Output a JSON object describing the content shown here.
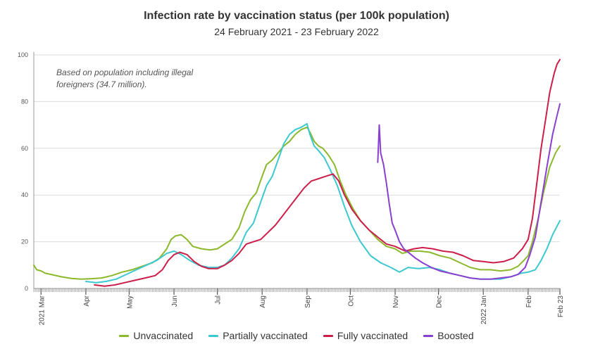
{
  "chart_data": {
    "type": "line",
    "title": "Infection rate by vaccination status (per 100k population)",
    "subtitle": "24 February 2021 - 23 February 2022",
    "annotation": [
      "Based on population including illegal",
      "foreigners (34.7 million)."
    ],
    "xlabel": "",
    "ylabel": "",
    "xlim": [
      "2021-02-24",
      "2022-02-23"
    ],
    "ylim": [
      0,
      100
    ],
    "y_ticks": [
      0,
      20,
      40,
      60,
      80,
      100
    ],
    "grid": "horizontal",
    "legend_position": "bottom",
    "x_ticks": [
      {
        "date": "2021-03-01",
        "label": "2021 Mar"
      },
      {
        "date": "2021-04-01",
        "label": "Apr"
      },
      {
        "date": "2021-05-01",
        "label": "May"
      },
      {
        "date": "2021-06-01",
        "label": "Jun"
      },
      {
        "date": "2021-07-01",
        "label": "Jul"
      },
      {
        "date": "2021-08-01",
        "label": "Aug"
      },
      {
        "date": "2021-09-01",
        "label": "Sep"
      },
      {
        "date": "2021-10-01",
        "label": "Oct"
      },
      {
        "date": "2021-11-01",
        "label": "Nov"
      },
      {
        "date": "2021-12-01",
        "label": "Dec"
      },
      {
        "date": "2022-01-01",
        "label": "2022 Jan"
      },
      {
        "date": "2022-02-01",
        "label": "Feb"
      },
      {
        "date": "2022-02-23",
        "label": "Feb 23"
      }
    ],
    "series": [
      {
        "name": "Unvaccinated",
        "color": "#8cb82b",
        "points": [
          [
            "2021-02-24",
            10
          ],
          [
            "2021-02-26",
            8
          ],
          [
            "2021-03-01",
            7.5
          ],
          [
            "2021-03-04",
            6.5
          ],
          [
            "2021-03-08",
            6
          ],
          [
            "2021-03-15",
            5
          ],
          [
            "2021-03-22",
            4.3
          ],
          [
            "2021-03-29",
            4
          ],
          [
            "2021-04-05",
            4.2
          ],
          [
            "2021-04-12",
            4.5
          ],
          [
            "2021-04-19",
            5.5
          ],
          [
            "2021-04-26",
            7
          ],
          [
            "2021-05-03",
            8
          ],
          [
            "2021-05-10",
            9.5
          ],
          [
            "2021-05-17",
            11
          ],
          [
            "2021-05-22",
            13
          ],
          [
            "2021-05-27",
            17
          ],
          [
            "2021-05-30",
            21
          ],
          [
            "2021-06-02",
            22.5
          ],
          [
            "2021-06-06",
            23
          ],
          [
            "2021-06-10",
            21
          ],
          [
            "2021-06-14",
            18
          ],
          [
            "2021-06-20",
            17
          ],
          [
            "2021-06-26",
            16.5
          ],
          [
            "2021-07-01",
            17
          ],
          [
            "2021-07-06",
            19
          ],
          [
            "2021-07-11",
            21
          ],
          [
            "2021-07-16",
            26
          ],
          [
            "2021-07-20",
            33
          ],
          [
            "2021-07-24",
            38
          ],
          [
            "2021-07-28",
            41
          ],
          [
            "2021-08-01",
            48
          ],
          [
            "2021-08-04",
            53
          ],
          [
            "2021-08-08",
            55
          ],
          [
            "2021-08-12",
            58
          ],
          [
            "2021-08-16",
            61
          ],
          [
            "2021-08-20",
            63
          ],
          [
            "2021-08-24",
            66
          ],
          [
            "2021-08-28",
            68
          ],
          [
            "2021-09-01",
            69
          ],
          [
            "2021-09-03",
            67
          ],
          [
            "2021-09-06",
            63
          ],
          [
            "2021-09-09",
            61
          ],
          [
            "2021-09-12",
            60
          ],
          [
            "2021-09-16",
            57
          ],
          [
            "2021-09-20",
            53
          ],
          [
            "2021-09-24",
            46
          ],
          [
            "2021-09-28",
            40
          ],
          [
            "2021-10-03",
            34
          ],
          [
            "2021-10-08",
            29
          ],
          [
            "2021-10-14",
            25
          ],
          [
            "2021-10-20",
            21
          ],
          [
            "2021-10-26",
            18
          ],
          [
            "2021-11-01",
            17
          ],
          [
            "2021-11-06",
            15
          ],
          [
            "2021-11-12",
            16
          ],
          [
            "2021-11-18",
            16
          ],
          [
            "2021-11-25",
            15.5
          ],
          [
            "2021-12-02",
            14
          ],
          [
            "2021-12-09",
            13
          ],
          [
            "2021-12-16",
            11
          ],
          [
            "2021-12-23",
            9
          ],
          [
            "2021-12-30",
            8
          ],
          [
            "2022-01-06",
            8
          ],
          [
            "2022-01-13",
            7.5
          ],
          [
            "2022-01-20",
            8
          ],
          [
            "2022-01-25",
            9.5
          ],
          [
            "2022-01-29",
            12
          ],
          [
            "2022-02-01",
            14
          ],
          [
            "2022-02-04",
            20
          ],
          [
            "2022-02-08",
            30
          ],
          [
            "2022-02-12",
            42
          ],
          [
            "2022-02-16",
            52
          ],
          [
            "2022-02-20",
            58
          ],
          [
            "2022-02-23",
            61
          ]
        ]
      },
      {
        "name": "Partially vaccinated",
        "color": "#3cc8d0",
        "points": [
          [
            "2021-04-01",
            3
          ],
          [
            "2021-04-08",
            2.5
          ],
          [
            "2021-04-15",
            3
          ],
          [
            "2021-04-22",
            4
          ],
          [
            "2021-04-29",
            6
          ],
          [
            "2021-05-06",
            8
          ],
          [
            "2021-05-13",
            10
          ],
          [
            "2021-05-20",
            12
          ],
          [
            "2021-05-27",
            15
          ],
          [
            "2021-06-01",
            16
          ],
          [
            "2021-06-06",
            14.5
          ],
          [
            "2021-06-12",
            12
          ],
          [
            "2021-06-18",
            10
          ],
          [
            "2021-06-25",
            9
          ],
          [
            "2021-07-01",
            9
          ],
          [
            "2021-07-06",
            10
          ],
          [
            "2021-07-11",
            13
          ],
          [
            "2021-07-16",
            17
          ],
          [
            "2021-07-21",
            24
          ],
          [
            "2021-07-26",
            28
          ],
          [
            "2021-07-31",
            37
          ],
          [
            "2021-08-04",
            44
          ],
          [
            "2021-08-08",
            48
          ],
          [
            "2021-08-12",
            55
          ],
          [
            "2021-08-16",
            62
          ],
          [
            "2021-08-20",
            66
          ],
          [
            "2021-08-24",
            68
          ],
          [
            "2021-08-28",
            69
          ],
          [
            "2021-09-01",
            70.5
          ],
          [
            "2021-09-03",
            66
          ],
          [
            "2021-09-06",
            61
          ],
          [
            "2021-09-09",
            59
          ],
          [
            "2021-09-13",
            56
          ],
          [
            "2021-09-17",
            51
          ],
          [
            "2021-09-22",
            44
          ],
          [
            "2021-09-27",
            35
          ],
          [
            "2021-10-02",
            27
          ],
          [
            "2021-10-08",
            20
          ],
          [
            "2021-10-15",
            14
          ],
          [
            "2021-10-22",
            11
          ],
          [
            "2021-10-29",
            9
          ],
          [
            "2021-11-04",
            7
          ],
          [
            "2021-11-10",
            9
          ],
          [
            "2021-11-17",
            8.5
          ],
          [
            "2021-11-25",
            9
          ],
          [
            "2021-12-02",
            8
          ],
          [
            "2021-12-09",
            6.5
          ],
          [
            "2021-12-16",
            5.5
          ],
          [
            "2021-12-23",
            4.5
          ],
          [
            "2021-12-30",
            4
          ],
          [
            "2022-01-06",
            4
          ],
          [
            "2022-01-13",
            4
          ],
          [
            "2022-01-20",
            5
          ],
          [
            "2022-01-27",
            6.5
          ],
          [
            "2022-02-01",
            7
          ],
          [
            "2022-02-06",
            8
          ],
          [
            "2022-02-10",
            12
          ],
          [
            "2022-02-14",
            17
          ],
          [
            "2022-02-18",
            23
          ],
          [
            "2022-02-23",
            29
          ]
        ]
      },
      {
        "name": "Fully vaccinated",
        "color": "#cc1e4a",
        "points": [
          [
            "2021-04-07",
            1.5
          ],
          [
            "2021-04-14",
            1
          ],
          [
            "2021-04-21",
            1.5
          ],
          [
            "2021-04-28",
            2.5
          ],
          [
            "2021-05-05",
            3.5
          ],
          [
            "2021-05-12",
            4.5
          ],
          [
            "2021-05-19",
            5.5
          ],
          [
            "2021-05-24",
            8
          ],
          [
            "2021-05-28",
            12
          ],
          [
            "2021-06-01",
            14.5
          ],
          [
            "2021-06-05",
            15.5
          ],
          [
            "2021-06-10",
            14.5
          ],
          [
            "2021-06-15",
            11.5
          ],
          [
            "2021-06-20",
            9.5
          ],
          [
            "2021-06-25",
            8.5
          ],
          [
            "2021-07-01",
            8.5
          ],
          [
            "2021-07-06",
            10
          ],
          [
            "2021-07-11",
            12
          ],
          [
            "2021-07-16",
            15
          ],
          [
            "2021-07-21",
            19
          ],
          [
            "2021-07-26",
            20
          ],
          [
            "2021-07-31",
            21
          ],
          [
            "2021-08-05",
            24
          ],
          [
            "2021-08-10",
            27
          ],
          [
            "2021-08-15",
            31
          ],
          [
            "2021-08-20",
            35
          ],
          [
            "2021-08-25",
            39
          ],
          [
            "2021-08-30",
            43
          ],
          [
            "2021-09-04",
            46
          ],
          [
            "2021-09-09",
            47
          ],
          [
            "2021-09-14",
            48
          ],
          [
            "2021-09-19",
            49
          ],
          [
            "2021-09-23",
            46
          ],
          [
            "2021-09-27",
            40
          ],
          [
            "2021-10-02",
            34
          ],
          [
            "2021-10-08",
            29
          ],
          [
            "2021-10-14",
            25
          ],
          [
            "2021-10-20",
            22
          ],
          [
            "2021-10-26",
            19
          ],
          [
            "2021-11-01",
            18
          ],
          [
            "2021-11-08",
            16
          ],
          [
            "2021-11-14",
            17
          ],
          [
            "2021-11-20",
            17.5
          ],
          [
            "2021-11-27",
            17
          ],
          [
            "2021-12-04",
            16
          ],
          [
            "2021-12-11",
            15.5
          ],
          [
            "2021-12-18",
            14
          ],
          [
            "2021-12-25",
            12
          ],
          [
            "2022-01-01",
            11.5
          ],
          [
            "2022-01-08",
            11
          ],
          [
            "2022-01-15",
            11.5
          ],
          [
            "2022-01-22",
            13
          ],
          [
            "2022-01-28",
            17
          ],
          [
            "2022-02-01",
            21
          ],
          [
            "2022-02-04",
            30
          ],
          [
            "2022-02-07",
            45
          ],
          [
            "2022-02-10",
            60
          ],
          [
            "2022-02-13",
            72
          ],
          [
            "2022-02-16",
            84
          ],
          [
            "2022-02-19",
            92
          ],
          [
            "2022-02-21",
            96
          ],
          [
            "2022-02-23",
            98
          ]
        ]
      },
      {
        "name": "Boosted",
        "color": "#8a3fd1",
        "points": [
          [
            "2021-10-20",
            54
          ],
          [
            "2021-10-21",
            70
          ],
          [
            "2021-10-22",
            58
          ],
          [
            "2021-10-24",
            53
          ],
          [
            "2021-10-26",
            45
          ],
          [
            "2021-10-28",
            36
          ],
          [
            "2021-10-30",
            28
          ],
          [
            "2021-11-01",
            25
          ],
          [
            "2021-11-04",
            20
          ],
          [
            "2021-11-07",
            17
          ],
          [
            "2021-11-11",
            15
          ],
          [
            "2021-11-15",
            13
          ],
          [
            "2021-11-20",
            11
          ],
          [
            "2021-11-26",
            9
          ],
          [
            "2021-12-02",
            7.5
          ],
          [
            "2021-12-09",
            6.5
          ],
          [
            "2021-12-16",
            5.5
          ],
          [
            "2021-12-23",
            4.5
          ],
          [
            "2021-12-30",
            4
          ],
          [
            "2022-01-06",
            4
          ],
          [
            "2022-01-13",
            4.5
          ],
          [
            "2022-01-20",
            5
          ],
          [
            "2022-01-25",
            6
          ],
          [
            "2022-01-30",
            9
          ],
          [
            "2022-02-02",
            14
          ],
          [
            "2022-02-06",
            22
          ],
          [
            "2022-02-10",
            37
          ],
          [
            "2022-02-14",
            52
          ],
          [
            "2022-02-18",
            66
          ],
          [
            "2022-02-21",
            74
          ],
          [
            "2022-02-23",
            79
          ]
        ]
      }
    ]
  }
}
